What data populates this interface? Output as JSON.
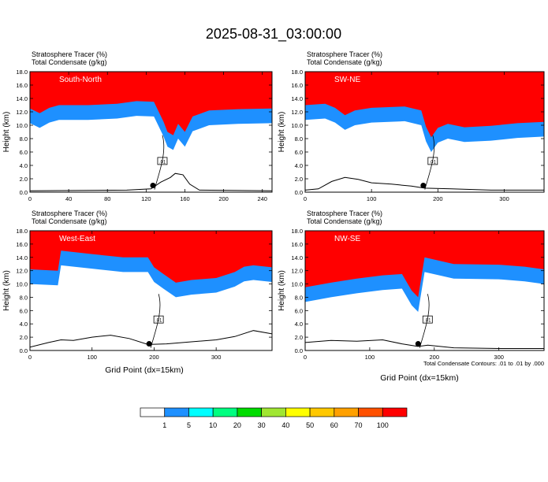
{
  "figure": {
    "title": "2025-08-31_03:00:00",
    "footnote": "Total Condensate Contours: .01 to .01 by .000",
    "xlabel": "Grid Point (dx=15km)"
  },
  "colorbar": {
    "levels": [
      "1",
      "5",
      "10",
      "20",
      "30",
      "40",
      "50",
      "60",
      "70",
      "100"
    ],
    "colors": [
      "#ffffff",
      "#1e90ff",
      "#00ffff",
      "#00ff80",
      "#00dc00",
      "#a0e632",
      "#ffff00",
      "#ffc800",
      "#ffa000",
      "#ff5000",
      "#ff0000"
    ]
  },
  "chart_data": [
    {
      "type": "heatmap",
      "label": "South-North",
      "line1": "Stratosphere Tracer   (%)",
      "line2": "Total Condensate   (g/kg)",
      "ylabel": "Height (km)",
      "xlabel": "",
      "xlim": [
        0,
        250
      ],
      "ylim": [
        0,
        18
      ],
      "xticks": [
        0,
        40,
        80,
        120,
        160,
        200,
        240
      ],
      "yticks": [
        "0.0",
        "2.0",
        "4.0",
        "6.0",
        "8.0",
        "10.0",
        "12.0",
        "14.0",
        "16.0",
        "18.0"
      ],
      "marker_x": 127,
      "contour_label": ".01",
      "tracer_base": [
        [
          0,
          12.5
        ],
        [
          10,
          11.8
        ],
        [
          20,
          12.6
        ],
        [
          30,
          13.0
        ],
        [
          60,
          13.0
        ],
        [
          90,
          13.2
        ],
        [
          110,
          13.6
        ],
        [
          128,
          13.5
        ],
        [
          138,
          10.5
        ],
        [
          142,
          9.0
        ],
        [
          148,
          8.5
        ],
        [
          153,
          10.2
        ],
        [
          160,
          9.0
        ],
        [
          168,
          11.3
        ],
        [
          185,
          12.2
        ],
        [
          215,
          12.4
        ],
        [
          250,
          12.5
        ]
      ],
      "terrain": [
        [
          0,
          0.2
        ],
        [
          100,
          0.3
        ],
        [
          125,
          0.5
        ],
        [
          135,
          1.5
        ],
        [
          145,
          2.2
        ],
        [
          150,
          2.8
        ],
        [
          158,
          2.6
        ],
        [
          165,
          1.2
        ],
        [
          175,
          0.3
        ],
        [
          250,
          0.2
        ]
      ]
    },
    {
      "type": "heatmap",
      "label": "SW-NE",
      "line1": "Stratosphere Tracer   (%)",
      "line2": "Total Condensate   (g/kg)",
      "ylabel": "Height (km)",
      "xlabel": "",
      "xlim": [
        0,
        360
      ],
      "ylim": [
        0,
        18
      ],
      "xticks": [
        0,
        100,
        200,
        300
      ],
      "yticks": [
        "0.0",
        "2.0",
        "4.0",
        "6.0",
        "8.0",
        "10.0",
        "12.0",
        "14.0",
        "16.0",
        "18.0"
      ],
      "marker_x": 178,
      "contour_label": ".01",
      "tracer_base": [
        [
          0,
          13.0
        ],
        [
          30,
          13.2
        ],
        [
          45,
          12.6
        ],
        [
          60,
          11.5
        ],
        [
          75,
          12.2
        ],
        [
          100,
          12.6
        ],
        [
          150,
          12.8
        ],
        [
          175,
          12.2
        ],
        [
          182,
          9.8
        ],
        [
          190,
          8.2
        ],
        [
          200,
          9.6
        ],
        [
          215,
          10.2
        ],
        [
          240,
          9.7
        ],
        [
          280,
          9.9
        ],
        [
          320,
          10.3
        ],
        [
          360,
          10.5
        ]
      ],
      "terrain": [
        [
          0,
          0.3
        ],
        [
          20,
          0.5
        ],
        [
          40,
          1.6
        ],
        [
          60,
          2.2
        ],
        [
          80,
          1.9
        ],
        [
          100,
          1.4
        ],
        [
          130,
          1.2
        ],
        [
          160,
          0.9
        ],
        [
          180,
          0.6
        ],
        [
          220,
          0.5
        ],
        [
          280,
          0.3
        ],
        [
          360,
          0.3
        ]
      ]
    },
    {
      "type": "heatmap",
      "label": "West-East",
      "line1": "Stratosphere Tracer   (%)",
      "line2": "Total Condensate   (g/kg)",
      "ylabel": "Height (km)",
      "xlabel": "",
      "xlim": [
        0,
        390
      ],
      "ylim": [
        0,
        18
      ],
      "xticks": [
        0,
        100,
        200,
        300
      ],
      "yticks": [
        "0.0",
        "2.0",
        "4.0",
        "6.0",
        "8.0",
        "10.0",
        "12.0",
        "14.0",
        "16.0",
        "18.0"
      ],
      "marker_x": 192,
      "contour_label": ".01",
      "tracer_base": [
        [
          0,
          12.2
        ],
        [
          45,
          12.0
        ],
        [
          50,
          15.0
        ],
        [
          100,
          14.5
        ],
        [
          150,
          14.0
        ],
        [
          190,
          14.0
        ],
        [
          200,
          12.5
        ],
        [
          215,
          11.5
        ],
        [
          235,
          10.2
        ],
        [
          260,
          10.6
        ],
        [
          300,
          10.9
        ],
        [
          330,
          11.8
        ],
        [
          345,
          12.6
        ],
        [
          360,
          12.8
        ],
        [
          390,
          12.5
        ]
      ],
      "terrain": [
        [
          0,
          0.5
        ],
        [
          30,
          1.2
        ],
        [
          50,
          1.6
        ],
        [
          70,
          1.5
        ],
        [
          100,
          2.0
        ],
        [
          130,
          2.3
        ],
        [
          160,
          1.8
        ],
        [
          190,
          0.9
        ],
        [
          220,
          1.0
        ],
        [
          260,
          1.3
        ],
        [
          300,
          1.6
        ],
        [
          330,
          2.1
        ],
        [
          360,
          3.0
        ],
        [
          390,
          2.5
        ]
      ]
    },
    {
      "type": "heatmap",
      "label": "NW-SE",
      "line1": "Stratosphere Tracer   (%)",
      "line2": "Total Condensate   (g/kg)",
      "ylabel": "Height (km)",
      "xlabel": "Grid Point (dx=15km)",
      "xlim": [
        0,
        370
      ],
      "ylim": [
        0,
        18
      ],
      "xticks": [
        0,
        100,
        200,
        300
      ],
      "yticks": [
        "0.0",
        "2.0",
        "4.0",
        "6.0",
        "8.0",
        "10.0",
        "12.0",
        "14.0",
        "16.0",
        "18.0"
      ],
      "marker_x": 175,
      "contour_label": ".01",
      "tracer_base": [
        [
          0,
          9.5
        ],
        [
          40,
          10.2
        ],
        [
          80,
          10.8
        ],
        [
          120,
          11.3
        ],
        [
          150,
          11.5
        ],
        [
          165,
          9.0
        ],
        [
          175,
          8.0
        ],
        [
          185,
          14.0
        ],
        [
          230,
          13.0
        ],
        [
          300,
          12.9
        ],
        [
          340,
          12.6
        ],
        [
          370,
          12.2
        ]
      ],
      "terrain": [
        [
          0,
          1.2
        ],
        [
          40,
          1.5
        ],
        [
          80,
          1.4
        ],
        [
          120,
          1.6
        ],
        [
          150,
          1.0
        ],
        [
          175,
          0.6
        ],
        [
          190,
          0.8
        ],
        [
          230,
          0.4
        ],
        [
          300,
          0.3
        ],
        [
          370,
          0.3
        ]
      ]
    }
  ]
}
